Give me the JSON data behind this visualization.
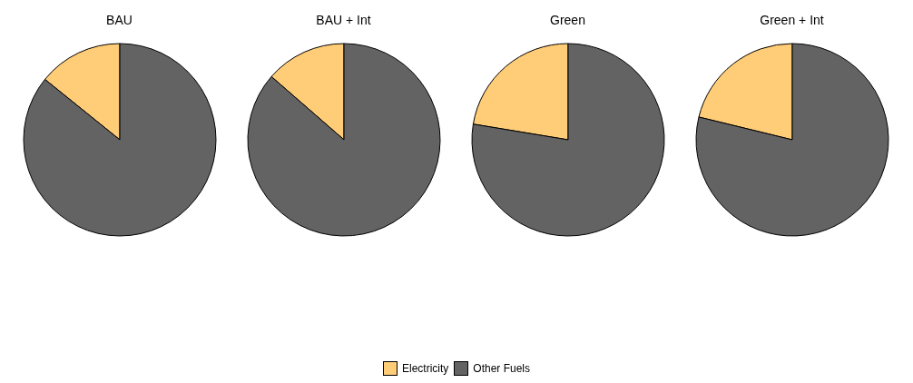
{
  "chart_data": [
    {
      "type": "pie",
      "title": "BAU",
      "categories": [
        "Electricity",
        "Other Fuels"
      ],
      "values": [
        14.2,
        85.8
      ],
      "colors": [
        "#ffcc77",
        "#636363"
      ],
      "legend": "bottom"
    },
    {
      "type": "pie",
      "title": "BAU + Int",
      "values": [
        13.6,
        86.4
      ],
      "colors": [
        "#ffcc77",
        "#636363"
      ]
    },
    {
      "type": "pie",
      "title": "Green",
      "values": [
        22.4,
        77.6
      ],
      "colors": [
        "#ffcc77",
        "#636363"
      ]
    },
    {
      "type": "pie",
      "title": "Green + Int",
      "values": [
        21.2,
        78.8
      ],
      "colors": [
        "#ffcc77",
        "#636363"
      ]
    }
  ]
}
